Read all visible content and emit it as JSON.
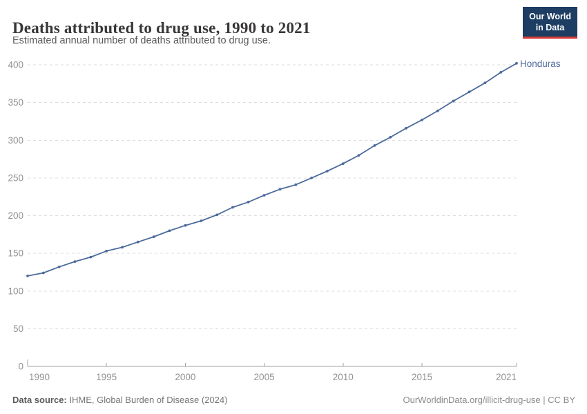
{
  "header": {
    "title": "Deaths attributed to drug use, 1990 to 2021",
    "subtitle": "Estimated annual number of deaths attributed to drug use.",
    "logo": {
      "line1": "Our World",
      "line2": "in Data",
      "bg_color": "#1d3d63",
      "accent_color": "#d73c34"
    }
  },
  "chart_data": {
    "type": "line",
    "title": "Deaths attributed to drug use, 1990 to 2021",
    "xlabel": "",
    "ylabel": "",
    "xlim": [
      1990,
      2021
    ],
    "ylim": [
      0,
      400
    ],
    "xticks": [
      1990,
      1995,
      2000,
      2005,
      2010,
      2015,
      2021
    ],
    "yticks": [
      0,
      50,
      100,
      150,
      200,
      250,
      300,
      350,
      400
    ],
    "grid": "horizontal-dashed",
    "legend_position": "end-of-line-label",
    "x": [
      1990,
      1991,
      1992,
      1993,
      1994,
      1995,
      1996,
      1997,
      1998,
      1999,
      2000,
      2001,
      2002,
      2003,
      2004,
      2005,
      2006,
      2007,
      2008,
      2009,
      2010,
      2011,
      2012,
      2013,
      2014,
      2015,
      2016,
      2017,
      2018,
      2019,
      2020,
      2021
    ],
    "series": [
      {
        "name": "Honduras",
        "color": "#4c6a9c",
        "values": [
          120,
          124,
          132,
          139,
          145,
          153,
          158,
          165,
          172,
          180,
          187,
          193,
          201,
          211,
          218,
          227,
          235,
          241,
          250,
          259,
          269,
          280,
          293,
          304,
          316,
          327,
          339,
          352,
          364,
          376,
          390,
          402
        ]
      }
    ],
    "axis_color": "#a2a2a2",
    "gridline_color": "#dedede",
    "tick_label_color": "#919191"
  },
  "footer": {
    "source_label": "Data source:",
    "source_text": " IHME, Global Burden of Disease (2024)",
    "link_text": "OurWorldinData.org/illicit-drug-use | CC BY"
  }
}
